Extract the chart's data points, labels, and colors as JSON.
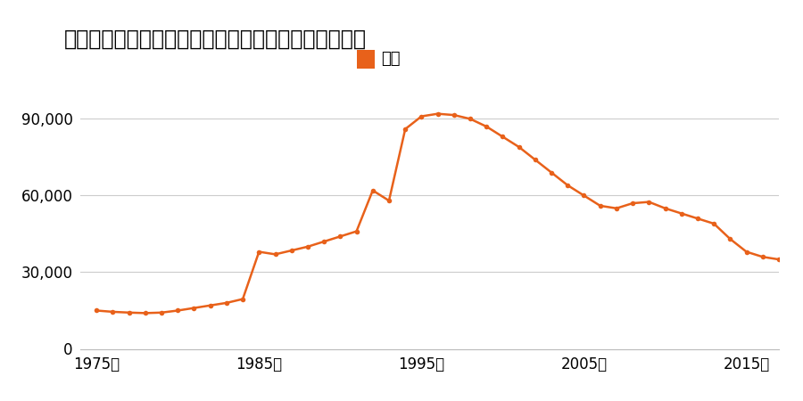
{
  "title": "茨城県日立市大沼町字川原内９０４番５５の地価推移",
  "legend_label": "価格",
  "line_color": "#e8611a",
  "marker_color": "#e8611a",
  "legend_rect_color": "#e8611a",
  "background_color": "#ffffff",
  "grid_color": "#cccccc",
  "xlim": [
    1974,
    2017
  ],
  "ylim": [
    0,
    102000
  ],
  "yticks": [
    0,
    30000,
    60000,
    90000
  ],
  "xticks": [
    1975,
    1985,
    1995,
    2005,
    2015
  ],
  "years": [
    1975,
    1976,
    1977,
    1978,
    1979,
    1980,
    1981,
    1982,
    1983,
    1984,
    1985,
    1986,
    1987,
    1988,
    1989,
    1990,
    1991,
    1992,
    1993,
    1994,
    1995,
    1996,
    1997,
    1998,
    1999,
    2000,
    2001,
    2002,
    2003,
    2004,
    2005,
    2006,
    2007,
    2008,
    2009,
    2010,
    2011,
    2012,
    2013,
    2014,
    2015,
    2016,
    2017
  ],
  "prices": [
    15000,
    14500,
    14200,
    14000,
    14200,
    15000,
    16000,
    17000,
    18000,
    19500,
    38000,
    37000,
    38500,
    40000,
    42000,
    44000,
    46000,
    62000,
    58000,
    86000,
    91000,
    92000,
    91500,
    90000,
    87000,
    83000,
    79000,
    74000,
    69000,
    64000,
    60000,
    56000,
    55000,
    57000,
    57500,
    55000,
    53000,
    51000,
    49000,
    43000,
    38000,
    36000,
    35000
  ]
}
